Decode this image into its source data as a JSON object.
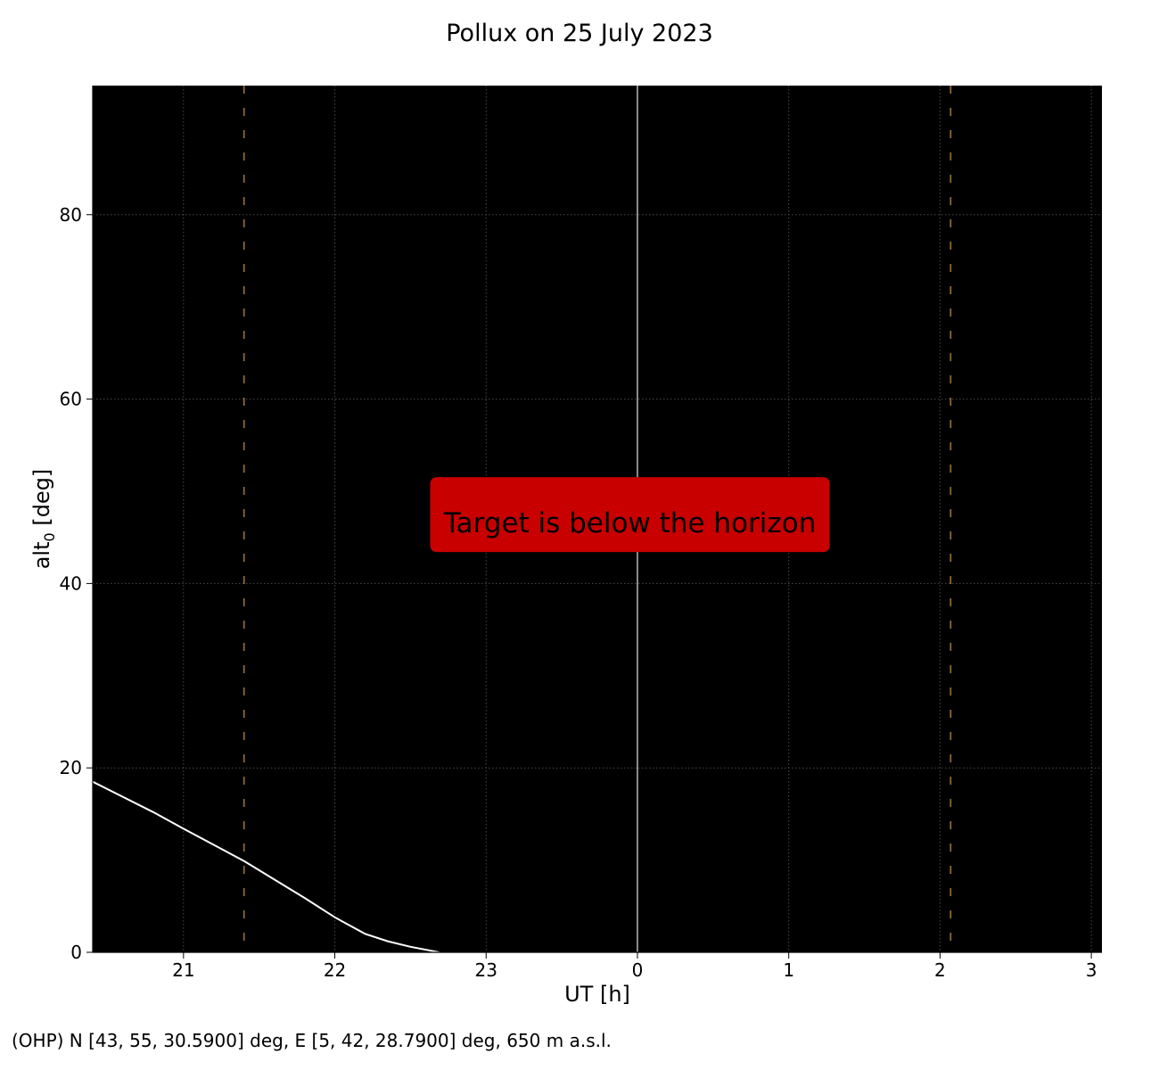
{
  "chart_data": {
    "type": "line",
    "title": "Pollux on 25 July 2023",
    "xlabel": "UT [h]",
    "ylabel": "alt",
    "ylabel_subscript": "0",
    "ylabel_unit": " [deg]",
    "xlim": [
      20.4,
      27.07
    ],
    "ylim": [
      0,
      94
    ],
    "x_ticks": [
      21,
      22,
      23,
      24,
      25,
      26,
      27
    ],
    "x_tick_labels": [
      "21",
      "22",
      "23",
      "0",
      "1",
      "2",
      "3"
    ],
    "y_ticks": [
      0,
      20,
      40,
      60,
      80
    ],
    "y_tick_labels": [
      "0",
      "20",
      "40",
      "60",
      "80"
    ],
    "grid": true,
    "background": "#000000",
    "series": [
      {
        "color": "#ffffff",
        "x": [
          20.4,
          20.8,
          21.0,
          21.4,
          21.8,
          22.0,
          22.2,
          22.35,
          22.5,
          22.69
        ],
        "y": [
          18.5,
          15.2,
          13.4,
          9.9,
          5.9,
          3.8,
          2.0,
          1.2,
          0.6,
          0.0
        ]
      }
    ],
    "vertical_lines": [
      {
        "x": 21.4,
        "style": "dashed",
        "color": "#8a6a3a"
      },
      {
        "x": 24.0,
        "style": "solid",
        "color": "#9a9a9a"
      },
      {
        "x": 26.07,
        "style": "dashed",
        "color": "#8a6a3a"
      }
    ],
    "annotation": {
      "text": "Target is below the horizon",
      "x": 23.95,
      "y": 46.5,
      "box_color": "#c80000"
    }
  },
  "footer": "(OHP) N [43, 55, 30.5900] deg, E [5, 42, 28.7900] deg, 650 m a.s.l."
}
